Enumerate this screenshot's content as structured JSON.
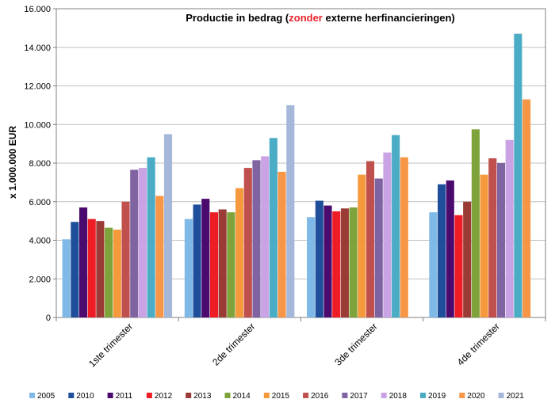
{
  "chart_data": {
    "type": "bar",
    "title": {
      "part1": "Productie in bedrag (",
      "highlight": "zonder",
      "part2": " externe herfinancieringen)"
    },
    "ylabel": "x 1.000.000 EUR",
    "xlabel": "",
    "ylim": [
      0,
      16000
    ],
    "yticks": [
      "0",
      "2.000",
      "4.000",
      "6.000",
      "8.000",
      "10.000",
      "12.000",
      "14.000",
      "16.000"
    ],
    "ytick_values": [
      0,
      2000,
      4000,
      6000,
      8000,
      10000,
      12000,
      14000,
      16000
    ],
    "grid": "horizontal",
    "legend": "bottom",
    "highlight_color": "#e8232a",
    "categories": [
      "1ste trimester",
      "2de trimester",
      "3de trimester",
      "4de trimester"
    ],
    "series": [
      {
        "name": "2005",
        "color": "#7eb9e8",
        "values": [
          4050,
          5100,
          5200,
          5450
        ]
      },
      {
        "name": "2010",
        "color": "#1f4e9a",
        "values": [
          4950,
          5850,
          6050,
          6900
        ]
      },
      {
        "name": "2011",
        "color": "#4b0a6e",
        "values": [
          5700,
          6150,
          5800,
          7100
        ]
      },
      {
        "name": "2012",
        "color": "#ee1c25",
        "values": [
          5100,
          5450,
          5500,
          5300
        ]
      },
      {
        "name": "2013",
        "color": "#9b3b35",
        "values": [
          5000,
          5600,
          5650,
          6000
        ]
      },
      {
        "name": "2014",
        "color": "#7ea33a",
        "values": [
          4650,
          5450,
          5700,
          9750
        ]
      },
      {
        "name": "2015",
        "color": "#f59a3c",
        "values": [
          4550,
          6700,
          7400,
          7400
        ]
      },
      {
        "name": "2016",
        "color": "#c0504d",
        "values": [
          6000,
          7750,
          8100,
          8250
        ]
      },
      {
        "name": "2017",
        "color": "#8064a2",
        "values": [
          7650,
          8150,
          7200,
          8000
        ]
      },
      {
        "name": "2018",
        "color": "#c9a3e3",
        "values": [
          7750,
          8350,
          8550,
          9200
        ]
      },
      {
        "name": "2019",
        "color": "#4bacc6",
        "values": [
          8300,
          9300,
          9450,
          14700
        ]
      },
      {
        "name": "2020",
        "color": "#f79646",
        "values": [
          6300,
          7550,
          8300,
          11300
        ]
      },
      {
        "name": "2021",
        "color": "#a5b8d9",
        "values": [
          9500,
          11000,
          null,
          null
        ]
      }
    ]
  }
}
